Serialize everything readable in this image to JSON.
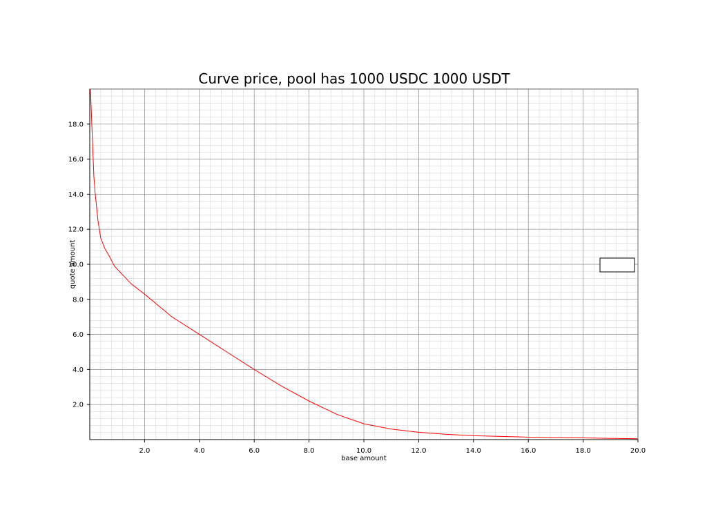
{
  "chart_data": {
    "type": "line",
    "title": "Curve price, pool has 1000 USDC 1000 USDT",
    "xlabel": "base amount",
    "ylabel": "quote amount",
    "xlim": [
      0,
      20
    ],
    "ylim": [
      0,
      20
    ],
    "x_ticks": [
      "2.0",
      "4.0",
      "6.0",
      "8.0",
      "10.0",
      "12.0",
      "14.0",
      "16.0",
      "18.0",
      "20.0"
    ],
    "y_ticks": [
      "2.0",
      "4.0",
      "6.0",
      "8.0",
      "10.0",
      "12.0",
      "14.0",
      "16.0",
      "18.0"
    ],
    "grid": true,
    "minor_grid": true,
    "legend": "center-right",
    "series": [
      {
        "color": "#ff0000",
        "x": [
          0.02,
          0.05,
          0.1,
          0.15,
          0.2,
          0.3,
          0.4,
          0.55,
          0.7,
          0.9,
          1.5,
          2.0,
          3.0,
          4.0,
          5.0,
          6.0,
          7.0,
          8.0,
          9.0,
          10.0,
          11.0,
          12.0,
          13.0,
          14.0,
          15.0,
          16.0,
          17.0,
          18.0,
          19.0,
          20.0
        ],
        "y": [
          20.0,
          19.0,
          17.0,
          15.0,
          14.0,
          12.5,
          11.5,
          10.9,
          10.5,
          9.9,
          8.9,
          8.3,
          7.0,
          6.0,
          5.0,
          4.0,
          3.05,
          2.2,
          1.45,
          0.9,
          0.6,
          0.42,
          0.3,
          0.22,
          0.18,
          0.14,
          0.12,
          0.1,
          0.07,
          0.05
        ]
      }
    ]
  }
}
